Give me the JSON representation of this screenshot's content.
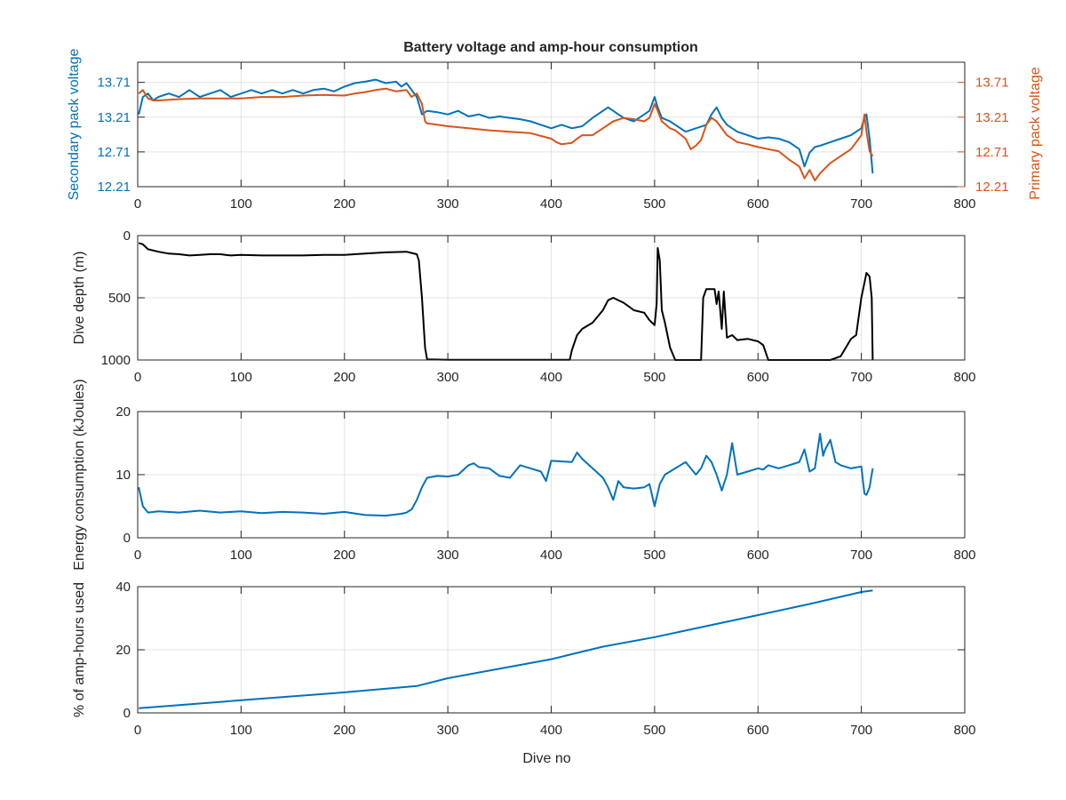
{
  "figure": {
    "title": "Battery voltage and amp-hour consumption"
  },
  "chart_data": [
    {
      "type": "line",
      "title": "Battery voltage and amp-hour consumption",
      "xlabel": "",
      "ylabel_left": "Secondary pack voltage",
      "ylabel_right": "Primary pack voltage",
      "xlim": [
        0,
        800
      ],
      "ylim": [
        12.21,
        14.0
      ],
      "xticks": [
        0,
        100,
        200,
        300,
        400,
        500,
        600,
        700,
        800
      ],
      "yticks": [
        12.21,
        12.71,
        13.21,
        13.71
      ],
      "ytick_labels": [
        "12.21",
        "12.71",
        "13.21",
        "13.71"
      ],
      "grid": true,
      "colors": {
        "secondary": "#0072BD",
        "primary": "#D95319"
      },
      "series": [
        {
          "axis": "left",
          "x": [
            1,
            5,
            10,
            15,
            20,
            30,
            40,
            50,
            60,
            70,
            80,
            90,
            100,
            110,
            120,
            130,
            140,
            150,
            160,
            170,
            180,
            190,
            200,
            210,
            220,
            230,
            240,
            250,
            255,
            260,
            265,
            270,
            275,
            280,
            290,
            300,
            310,
            320,
            330,
            340,
            350,
            360,
            370,
            380,
            390,
            400,
            410,
            420,
            430,
            440,
            450,
            455,
            460,
            465,
            470,
            480,
            490,
            495,
            500,
            503,
            507,
            515,
            520,
            530,
            540,
            550,
            555,
            560,
            565,
            570,
            580,
            590,
            600,
            610,
            620,
            630,
            640,
            645,
            650,
            655,
            660,
            670,
            680,
            690,
            700,
            703,
            705,
            708,
            711
          ],
          "values": [
            13.25,
            13.5,
            13.55,
            13.45,
            13.5,
            13.55,
            13.5,
            13.6,
            13.5,
            13.55,
            13.6,
            13.5,
            13.55,
            13.6,
            13.55,
            13.6,
            13.55,
            13.6,
            13.55,
            13.6,
            13.62,
            13.58,
            13.65,
            13.7,
            13.72,
            13.75,
            13.7,
            13.72,
            13.65,
            13.7,
            13.6,
            13.5,
            13.25,
            13.3,
            13.28,
            13.25,
            13.3,
            13.22,
            13.25,
            13.2,
            13.22,
            13.2,
            13.18,
            13.15,
            13.1,
            13.05,
            13.1,
            13.05,
            13.08,
            13.2,
            13.3,
            13.35,
            13.3,
            13.25,
            13.2,
            13.15,
            13.25,
            13.3,
            13.5,
            13.35,
            13.2,
            13.15,
            13.1,
            13.0,
            13.05,
            13.1,
            13.25,
            13.35,
            13.2,
            13.1,
            13.0,
            12.95,
            12.9,
            12.92,
            12.9,
            12.85,
            12.75,
            12.5,
            12.7,
            12.78,
            12.8,
            12.85,
            12.9,
            12.95,
            13.05,
            13.2,
            13.25,
            12.9,
            12.4
          ]
        },
        {
          "axis": "right",
          "x": [
            1,
            5,
            10,
            15,
            20,
            40,
            60,
            80,
            100,
            120,
            140,
            160,
            180,
            200,
            210,
            220,
            230,
            240,
            250,
            260,
            265,
            270,
            275,
            278,
            280,
            290,
            300,
            320,
            340,
            360,
            380,
            400,
            405,
            410,
            420,
            425,
            430,
            440,
            450,
            455,
            460,
            470,
            480,
            490,
            495,
            500,
            503,
            507,
            515,
            520,
            530,
            535,
            540,
            545,
            550,
            555,
            560,
            570,
            580,
            590,
            600,
            610,
            620,
            630,
            640,
            645,
            650,
            655,
            660,
            670,
            680,
            690,
            700,
            703,
            705,
            708,
            711
          ],
          "values": [
            13.55,
            13.6,
            13.48,
            13.45,
            13.45,
            13.47,
            13.48,
            13.48,
            13.48,
            13.5,
            13.5,
            13.52,
            13.53,
            13.52,
            13.55,
            13.57,
            13.6,
            13.62,
            13.58,
            13.6,
            13.5,
            13.55,
            13.4,
            13.15,
            13.12,
            13.1,
            13.08,
            13.05,
            13.02,
            13.0,
            12.98,
            12.9,
            12.85,
            12.82,
            12.84,
            12.9,
            12.95,
            12.95,
            13.05,
            13.1,
            13.15,
            13.2,
            13.18,
            13.15,
            13.2,
            13.4,
            13.3,
            13.15,
            13.05,
            13.02,
            12.9,
            12.75,
            12.8,
            12.88,
            13.1,
            13.2,
            13.15,
            12.95,
            12.85,
            12.82,
            12.78,
            12.75,
            12.72,
            12.6,
            12.5,
            12.33,
            12.45,
            12.3,
            12.4,
            12.55,
            12.65,
            12.75,
            12.95,
            13.25,
            13.0,
            12.72,
            12.65
          ]
        }
      ]
    },
    {
      "type": "line",
      "title": "",
      "xlabel": "",
      "ylabel": "Dive depth (m)",
      "xlim": [
        0,
        800
      ],
      "ylim": [
        0,
        1000
      ],
      "y_reversed": true,
      "xticks": [
        0,
        100,
        200,
        300,
        400,
        500,
        600,
        700,
        800
      ],
      "yticks": [
        0,
        500,
        1000
      ],
      "grid": true,
      "colors": {
        "line": "#000000"
      },
      "series": [
        {
          "x": [
            1,
            5,
            10,
            20,
            30,
            40,
            50,
            60,
            70,
            80,
            90,
            100,
            120,
            140,
            160,
            180,
            200,
            220,
            240,
            260,
            265,
            270,
            272,
            275,
            278,
            280,
            300,
            350,
            400,
            418,
            420,
            425,
            430,
            440,
            450,
            455,
            460,
            470,
            480,
            490,
            495,
            500,
            502,
            503,
            505,
            507,
            510,
            515,
            520,
            540,
            545,
            547,
            550,
            555,
            558,
            560,
            562,
            565,
            567,
            570,
            575,
            580,
            590,
            600,
            605,
            610,
            612,
            615,
            640,
            670,
            680,
            690,
            695,
            700,
            703,
            705,
            708,
            710,
            711
          ],
          "values": [
            60,
            70,
            110,
            130,
            145,
            150,
            160,
            155,
            150,
            150,
            160,
            155,
            160,
            160,
            160,
            155,
            155,
            145,
            135,
            130,
            140,
            150,
            200,
            500,
            900,
            995,
            998,
            998,
            998,
            998,
            920,
            800,
            750,
            700,
            600,
            520,
            500,
            540,
            600,
            620,
            680,
            720,
            550,
            100,
            200,
            600,
            700,
            900,
            1000,
            1000,
            1000,
            500,
            430,
            430,
            430,
            550,
            450,
            750,
            450,
            820,
            800,
            840,
            830,
            850,
            880,
            1000,
            1000,
            1000,
            1000,
            1000,
            970,
            830,
            800,
            500,
            380,
            300,
            330,
            500,
            1000
          ]
        }
      ]
    },
    {
      "type": "line",
      "title": "",
      "xlabel": "",
      "ylabel": "Energy consumption (kJoules)",
      "xlim": [
        0,
        800
      ],
      "ylim": [
        0,
        20
      ],
      "xticks": [
        0,
        100,
        200,
        300,
        400,
        500,
        600,
        700,
        800
      ],
      "yticks": [
        0,
        10,
        20
      ],
      "grid": true,
      "colors": {
        "line": "#0072BD"
      },
      "series": [
        {
          "x": [
            1,
            5,
            10,
            20,
            40,
            60,
            80,
            100,
            120,
            140,
            160,
            180,
            200,
            220,
            240,
            255,
            260,
            265,
            270,
            275,
            280,
            290,
            300,
            310,
            320,
            325,
            330,
            340,
            350,
            360,
            370,
            380,
            390,
            395,
            400,
            410,
            420,
            425,
            430,
            440,
            450,
            455,
            460,
            465,
            470,
            480,
            490,
            495,
            500,
            505,
            510,
            520,
            530,
            540,
            545,
            550,
            555,
            560,
            565,
            570,
            575,
            580,
            590,
            600,
            605,
            610,
            620,
            630,
            640,
            645,
            650,
            655,
            660,
            663,
            665,
            670,
            675,
            680,
            690,
            700,
            703,
            705,
            708,
            711
          ],
          "values": [
            8,
            5,
            4,
            4.2,
            4,
            4.3,
            4,
            4.2,
            3.9,
            4.1,
            4,
            3.8,
            4.1,
            3.6,
            3.5,
            3.8,
            4,
            4.5,
            6,
            8,
            9.5,
            9.8,
            9.7,
            10,
            11.5,
            11.8,
            11.2,
            11,
            9.8,
            9.5,
            11.5,
            11,
            10.5,
            9,
            12.2,
            12.1,
            12,
            13.5,
            12.5,
            11,
            9.5,
            8,
            6,
            9,
            8,
            7.8,
            8,
            8.5,
            5,
            8.5,
            10,
            11,
            12,
            10,
            11,
            13,
            12,
            10,
            7.5,
            10,
            15,
            10,
            10.5,
            11,
            10.8,
            11.5,
            11,
            11.5,
            12,
            14,
            10.5,
            11,
            16.5,
            13,
            14,
            15.5,
            12,
            11.5,
            11,
            11.3,
            7,
            6.8,
            8,
            11
          ]
        }
      ]
    },
    {
      "type": "line",
      "title": "",
      "xlabel": "Dive no",
      "ylabel": "% of amp-hours used",
      "xlim": [
        0,
        800
      ],
      "ylim": [
        0,
        40
      ],
      "xticks": [
        0,
        100,
        200,
        300,
        400,
        500,
        600,
        700,
        800
      ],
      "yticks": [
        0,
        20,
        40
      ],
      "grid": true,
      "colors": {
        "line": "#0072BD"
      },
      "series": [
        {
          "x": [
            1,
            100,
            200,
            270,
            300,
            400,
            450,
            500,
            550,
            600,
            650,
            700,
            711
          ],
          "values": [
            1.5,
            4,
            6.5,
            8.5,
            11,
            17,
            21,
            24,
            27.5,
            31,
            34.5,
            38.3,
            38.8
          ]
        }
      ]
    }
  ]
}
